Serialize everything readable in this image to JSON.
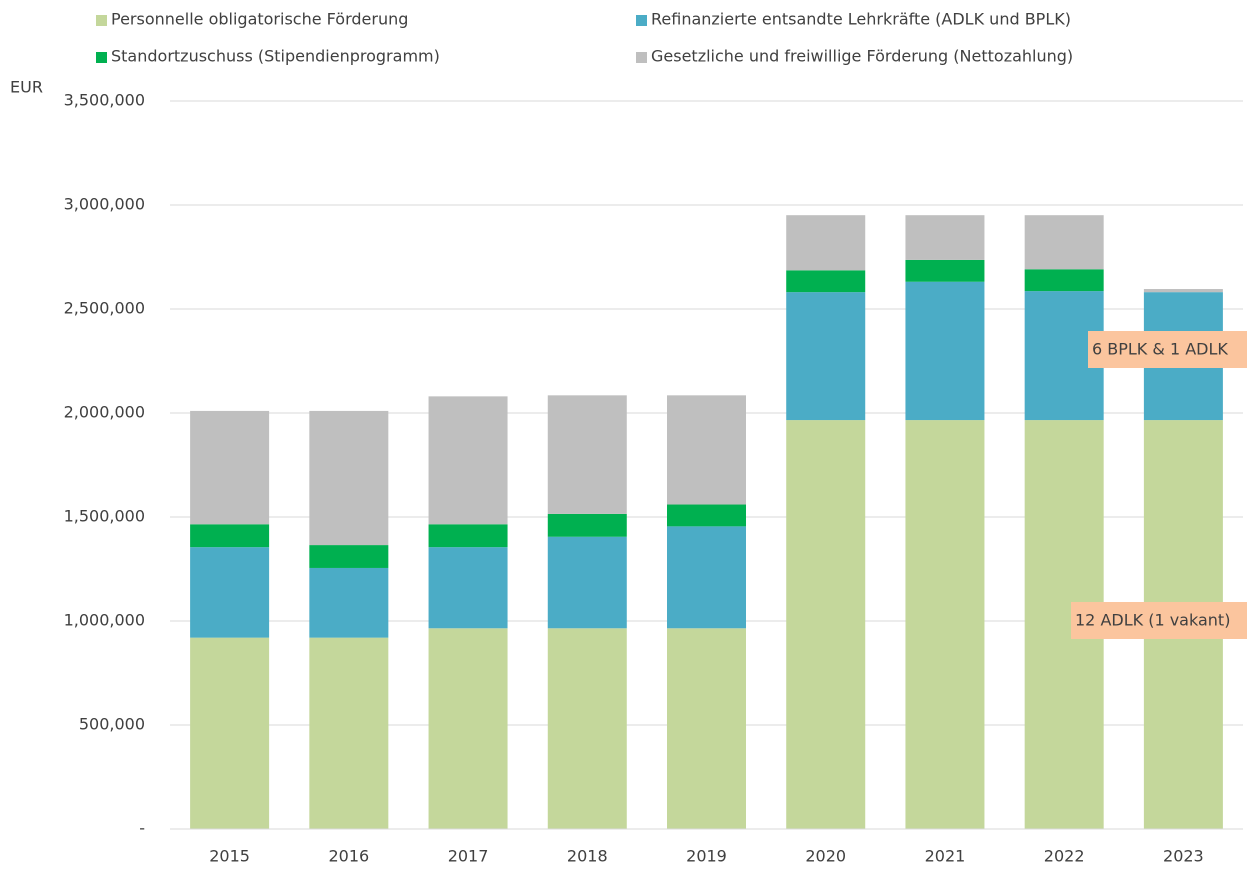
{
  "chart_data": {
    "type": "stacked_bar",
    "y_axis_label": "EUR",
    "categories": [
      "2015",
      "2016",
      "2017",
      "2018",
      "2019",
      "2020",
      "2021",
      "2022",
      "2023"
    ],
    "series": [
      {
        "name": "Personnelle obligatorische Förderung",
        "color": "#c4d79b",
        "values": [
          920000,
          920000,
          965000,
          965000,
          965000,
          1966000,
          1966000,
          1966000,
          1966000
        ]
      },
      {
        "name": "Refinanzierte entsandte Lehrkräfte (ADLK und BPLK)",
        "color": "#4bacc6",
        "values": [
          435000,
          335000,
          390000,
          440000,
          490000,
          615000,
          665000,
          620000,
          615000
        ]
      },
      {
        "name": "Standortzuschuss (Stipendienprogramm)",
        "color": "#00b050",
        "values": [
          110000,
          110000,
          110000,
          110000,
          105000,
          105000,
          105000,
          105000,
          0
        ]
      },
      {
        "name": "Gesetzliche und freiwillige Förderung (Nettozahlung)",
        "color": "#bfbfbf",
        "values": [
          545000,
          645000,
          615000,
          570000,
          525000,
          265000,
          215000,
          260000,
          15000
        ]
      }
    ],
    "ylim": [
      0,
      3500000
    ],
    "yticks": [
      {
        "value": 0,
        "label": "-"
      },
      {
        "value": 500000,
        "label": "500,000"
      },
      {
        "value": 1000000,
        "label": "1,000,000"
      },
      {
        "value": 1500000,
        "label": "1,500,000"
      },
      {
        "value": 2000000,
        "label": "2,000,000"
      },
      {
        "value": 2500000,
        "label": "2,500,000"
      },
      {
        "value": 3000000,
        "label": "3,000,000"
      },
      {
        "value": 3500000,
        "label": "3,500,000"
      }
    ],
    "grid": true,
    "annotations": [
      "6 BPLK & 1 ADLK",
      "12 ADLK (1 vakant)"
    ]
  }
}
